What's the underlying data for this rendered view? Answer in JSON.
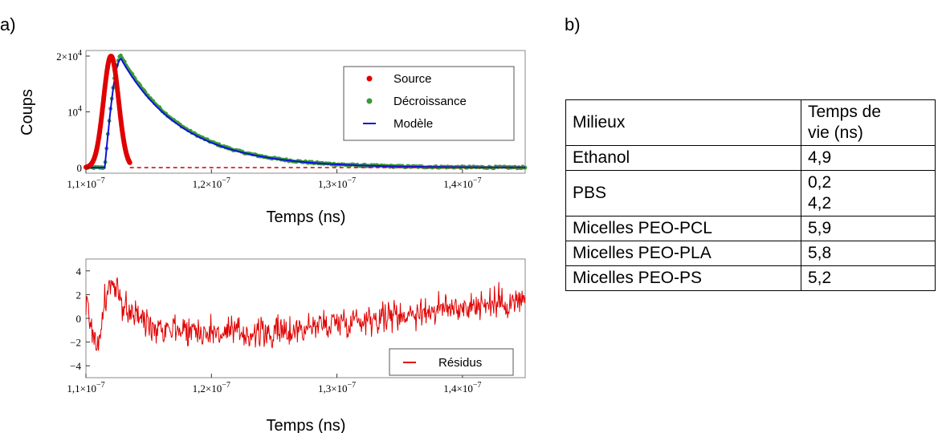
{
  "panel_a_label": "a)",
  "panel_b_label": "b)",
  "chart_data": [
    {
      "type": "scatter",
      "ylabel": "Coups",
      "xlabel": "Temps (ns)",
      "xlim": [
        1.1e-07,
        1.45e-07
      ],
      "ylim": [
        -1000,
        21000
      ],
      "x_ticks": [
        1.1e-07,
        1.2e-07,
        1.3e-07,
        1.4e-07
      ],
      "x_tick_labels": [
        {
          "base": "1,1×10",
          "exp": "−7"
        },
        {
          "base": "1,2×10",
          "exp": "−7"
        },
        {
          "base": "1,3×10",
          "exp": "−7"
        },
        {
          "base": "1,4×10",
          "exp": "−7"
        }
      ],
      "y_ticks": [
        0,
        10000,
        20000
      ],
      "y_tick_labels": [
        {
          "base": "0",
          "exp": ""
        },
        {
          "base": "10",
          "exp": "4"
        },
        {
          "base": "2×10",
          "exp": "4"
        }
      ],
      "legend_position": "top-right",
      "series": [
        {
          "name": "Source",
          "kind": "scatter",
          "color": "#e00000",
          "model": {
            "peak_x": 1.12e-07,
            "peak_y": 20000,
            "sigma": 6e-10
          }
        },
        {
          "name": "Décroissance",
          "kind": "scatter",
          "color": "#3a9a3a",
          "model": {
            "rise_start_x": 1.115e-07,
            "peak_x": 1.128e-07,
            "peak_y": 20000,
            "tau": 4.9e-09
          }
        },
        {
          "name": "Modèle",
          "kind": "line",
          "color": "#1010dd",
          "model": {
            "rise_start_x": 1.115e-07,
            "peak_x": 1.128e-07,
            "peak_y": 19500,
            "tau": 4.9e-09
          }
        }
      ]
    },
    {
      "type": "line",
      "xlabel": "Temps (ns)",
      "xlim": [
        1.1e-07,
        1.45e-07
      ],
      "ylim": [
        -5,
        5
      ],
      "x_ticks": [
        1.1e-07,
        1.2e-07,
        1.3e-07,
        1.4e-07
      ],
      "x_tick_labels": [
        {
          "base": "1,1×10",
          "exp": "−7"
        },
        {
          "base": "1,2×10",
          "exp": "−7"
        },
        {
          "base": "1,3×10",
          "exp": "−7"
        },
        {
          "base": "1,4×10",
          "exp": "−7"
        }
      ],
      "y_ticks": [
        -4,
        -2,
        0,
        2,
        4
      ],
      "y_tick_labels": [
        "−4",
        "−2",
        "0",
        "2",
        "4"
      ],
      "legend_position": "bottom-right",
      "series": [
        {
          "name": "Résidus",
          "color": "#e00000",
          "approx_values": [
            {
              "x": 1.1e-07,
              "y": 1.5
            },
            {
              "x": 1.105e-07,
              "y": -1.0
            },
            {
              "x": 1.11e-07,
              "y": -2.5
            },
            {
              "x": 1.115e-07,
              "y": 1.5
            },
            {
              "x": 1.12e-07,
              "y": 3.0
            },
            {
              "x": 1.125e-07,
              "y": 2.0
            },
            {
              "x": 1.13e-07,
              "y": 1.0
            },
            {
              "x": 1.15e-07,
              "y": -0.5
            },
            {
              "x": 1.2e-07,
              "y": -1.2
            },
            {
              "x": 1.25e-07,
              "y": -1.3
            },
            {
              "x": 1.3e-07,
              "y": -0.3
            },
            {
              "x": 1.35e-07,
              "y": 0.3
            },
            {
              "x": 1.4e-07,
              "y": 1.0
            },
            {
              "x": 1.45e-07,
              "y": 1.5
            }
          ]
        }
      ]
    }
  ],
  "table": {
    "header": [
      "Milieux",
      "Temps de\nvie (ns)"
    ],
    "rows": [
      [
        "Ethanol",
        "4,9"
      ],
      [
        "PBS",
        "0,2\n4,2"
      ],
      [
        "Micelles PEO-PCL",
        "5,9"
      ],
      [
        "Micelles PEO-PLA",
        "5,8"
      ],
      [
        "Micelles PEO-PS",
        "5,2"
      ]
    ]
  }
}
